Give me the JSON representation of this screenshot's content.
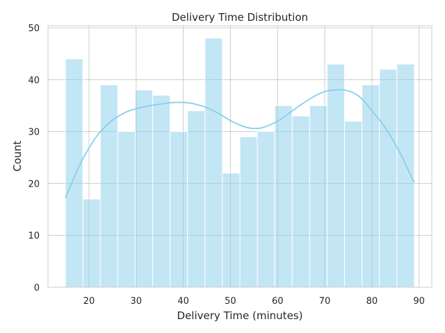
{
  "chart_data": {
    "type": "bar",
    "title": "Delivery Time Distribution",
    "xlabel": "Delivery Time (minutes)",
    "ylabel": "Count",
    "xlim": [
      11.3,
      92.7
    ],
    "ylim": [
      0,
      50.4
    ],
    "x_ticks": [
      20,
      30,
      40,
      50,
      60,
      70,
      80,
      90
    ],
    "y_ticks": [
      0,
      10,
      20,
      30,
      40,
      50
    ],
    "grid": true,
    "bins": [
      {
        "start": 15.0,
        "end": 18.7,
        "count": 44
      },
      {
        "start": 18.7,
        "end": 22.4,
        "count": 17
      },
      {
        "start": 22.4,
        "end": 26.1,
        "count": 39
      },
      {
        "start": 26.1,
        "end": 29.8,
        "count": 30
      },
      {
        "start": 29.8,
        "end": 33.5,
        "count": 38
      },
      {
        "start": 33.5,
        "end": 37.2,
        "count": 37
      },
      {
        "start": 37.2,
        "end": 40.9,
        "count": 30
      },
      {
        "start": 40.9,
        "end": 44.6,
        "count": 34
      },
      {
        "start": 44.6,
        "end": 48.3,
        "count": 48
      },
      {
        "start": 48.3,
        "end": 52.0,
        "count": 22
      },
      {
        "start": 52.0,
        "end": 55.7,
        "count": 29
      },
      {
        "start": 55.7,
        "end": 59.4,
        "count": 30
      },
      {
        "start": 59.4,
        "end": 63.1,
        "count": 35
      },
      {
        "start": 63.1,
        "end": 66.8,
        "count": 33
      },
      {
        "start": 66.8,
        "end": 70.5,
        "count": 35
      },
      {
        "start": 70.5,
        "end": 74.2,
        "count": 43
      },
      {
        "start": 74.2,
        "end": 77.9,
        "count": 32
      },
      {
        "start": 77.9,
        "end": 81.6,
        "count": 39
      },
      {
        "start": 81.6,
        "end": 85.3,
        "count": 42
      },
      {
        "start": 85.3,
        "end": 89.0,
        "count": 43
      }
    ],
    "kde": {
      "x": [
        15,
        18,
        20,
        22,
        25,
        28,
        30,
        33,
        36,
        38,
        40,
        42,
        45,
        48,
        50,
        53,
        55,
        57,
        60,
        63,
        65,
        68,
        70,
        72,
        74,
        76,
        78,
        80,
        83,
        86,
        88,
        89
      ],
      "y": [
        17.2,
        23.5,
        26.8,
        29.5,
        32.2,
        33.8,
        34.4,
        35.0,
        35.4,
        35.6,
        35.6,
        35.4,
        34.6,
        33.2,
        32.1,
        30.9,
        30.6,
        30.8,
        32.0,
        33.9,
        35.2,
        36.9,
        37.7,
        38.0,
        38.0,
        37.5,
        36.2,
        34.0,
        30.5,
        25.8,
        22.0,
        20.2
      ]
    },
    "colors": {
      "bar_fill": "#87ceeb",
      "bar_fill_opacity": 0.5,
      "bar_edge": "#ffffff",
      "kde_line": "#87ceeb",
      "grid": "#cccccc",
      "axes_edge": "#cccccc",
      "text": "#262626"
    }
  }
}
